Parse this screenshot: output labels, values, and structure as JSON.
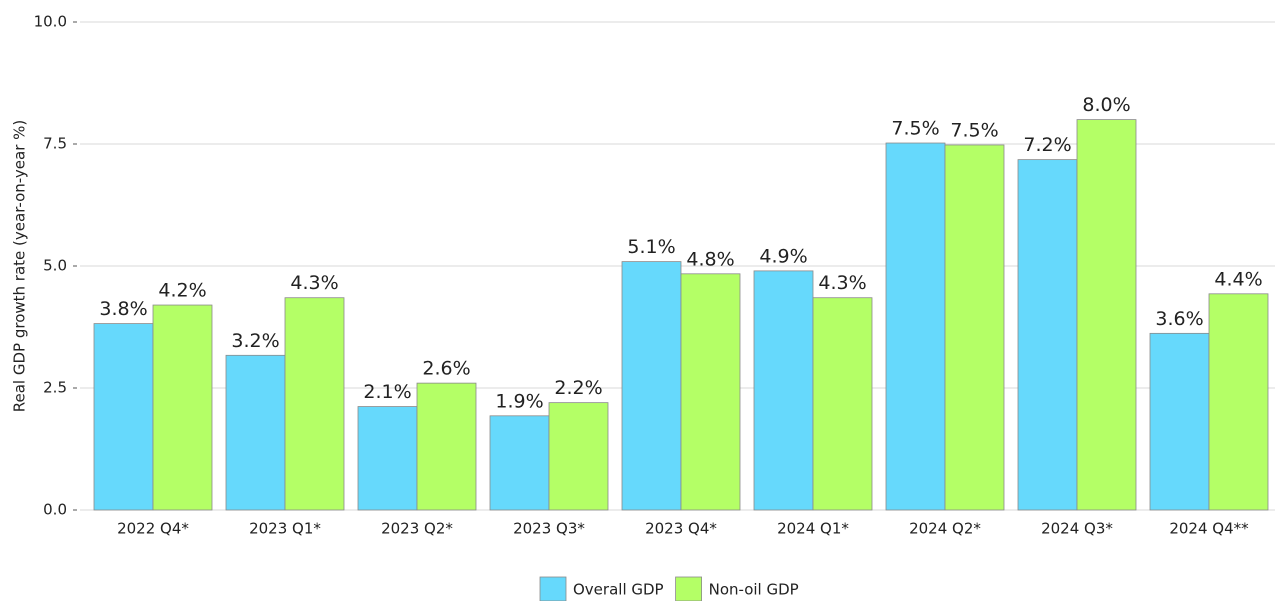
{
  "chart_data": {
    "type": "bar",
    "y_label": "Real GDP growth rate (year-on-year %)",
    "categories": [
      "2022 Q4*",
      "2023 Q1*",
      "2023 Q2*",
      "2023 Q3*",
      "2023 Q4*",
      "2024 Q1*",
      "2024 Q2*",
      "2024 Q3*",
      "2024 Q4**"
    ],
    "series": [
      {
        "name": "Overall GDP",
        "color": "#66d9fc",
        "values": [
          3.82,
          3.17,
          2.12,
          1.93,
          5.09,
          4.9,
          7.52,
          7.18,
          3.62
        ],
        "value_labels": [
          "3.8%",
          "3.2%",
          "2.1%",
          "1.9%",
          "5.1%",
          "4.9%",
          "7.5%",
          "7.2%",
          "3.6%"
        ]
      },
      {
        "name": "Non-oil GDP",
        "color": "#b4ff66",
        "values": [
          4.2,
          4.35,
          2.6,
          2.2,
          4.84,
          4.35,
          7.48,
          8.0,
          4.43
        ],
        "value_labels": [
          "4.2%",
          "4.3%",
          "2.6%",
          "2.2%",
          "4.8%",
          "4.3%",
          "7.5%",
          "8.0%",
          "4.4%"
        ]
      }
    ],
    "ylim": [
      0,
      10
    ],
    "yticks": [
      {
        "value": 0,
        "label": "0.0"
      },
      {
        "value": 2.5,
        "label": "2.5"
      },
      {
        "value": 5,
        "label": "5.0"
      },
      {
        "value": 7.5,
        "label": "7.5"
      },
      {
        "value": 10,
        "label": "10.0"
      }
    ],
    "grid": true,
    "legend": "bottom"
  }
}
